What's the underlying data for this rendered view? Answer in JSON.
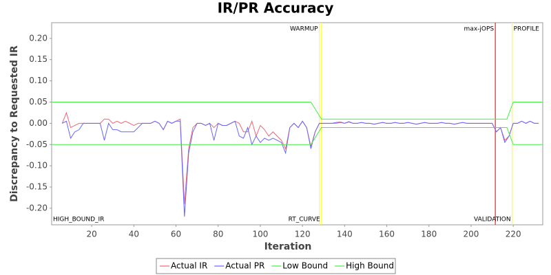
{
  "chart_data": {
    "type": "line",
    "title": "IR/PR Accuracy",
    "xlabel": "Iteration",
    "ylabel": "Discrepancy to Requested IR",
    "xlim": [
      1,
      234
    ],
    "ylim": [
      -0.239,
      0.237
    ],
    "xticks": [
      20,
      40,
      60,
      80,
      100,
      120,
      140,
      160,
      180,
      200,
      220
    ],
    "yticks": [
      {
        "value": 0.2,
        "label": "0.20"
      },
      0.15,
      {
        "value": 0.1,
        "label": "0.10"
      },
      0.05,
      {
        "value": 0,
        "label": "0.00"
      },
      -0.05,
      {
        "value": -0.1,
        "label": "-0.10"
      },
      -0.15,
      {
        "value": -0.2,
        "label": "-0.20"
      }
    ],
    "grid": false,
    "legend": "bottom",
    "series": [
      {
        "name": "Actual IR",
        "color": "#ee6677",
        "x": [
          6,
          8,
          10,
          12,
          14,
          16,
          18,
          20,
          22,
          24,
          26,
          28,
          30,
          32,
          34,
          36,
          38,
          40,
          42,
          44,
          46,
          48,
          50,
          52,
          54,
          56,
          58,
          60,
          62,
          64,
          66,
          68,
          70,
          72,
          74,
          76,
          78,
          80,
          82,
          84,
          86,
          88,
          90,
          92,
          94,
          96,
          98,
          100,
          102,
          104,
          106,
          108,
          110,
          112,
          114,
          116,
          118,
          120,
          122,
          124,
          126,
          128,
          130,
          132,
          134,
          136,
          138,
          140,
          142,
          144,
          146,
          148,
          150,
          152,
          154,
          156,
          158,
          160,
          162,
          164,
          166,
          168,
          170,
          172,
          174,
          176,
          178,
          180,
          182,
          184,
          186,
          188,
          190,
          192,
          194,
          196,
          198,
          200,
          202,
          204,
          206,
          208,
          210,
          212,
          214,
          216,
          218,
          220,
          222,
          224,
          226,
          228,
          230,
          232
        ],
        "values": [
          0,
          0.025,
          -0.01,
          -0.005,
          0,
          0,
          0,
          0,
          0,
          0,
          0.01,
          0.01,
          0,
          0.005,
          0,
          0.005,
          0,
          -0.005,
          0,
          0,
          0,
          0,
          0.005,
          0,
          -0.015,
          0.005,
          0,
          0.005,
          0.01,
          -0.19,
          -0.06,
          -0.01,
          0,
          0,
          -0.005,
          0,
          -0.01,
          0,
          -0.005,
          -0.005,
          0,
          0.005,
          0,
          -0.02,
          -0.02,
          0.005,
          -0.03,
          -0.005,
          -0.015,
          -0.03,
          -0.02,
          -0.03,
          -0.04,
          -0.06,
          -0.01,
          0,
          -0.01,
          0.005,
          -0.01,
          -0.055,
          -0.02,
          0,
          0,
          0,
          0,
          0,
          0.002,
          0,
          0.003,
          0,
          0,
          0.002,
          0,
          0,
          -0.002,
          0,
          0.002,
          0,
          0,
          0.002,
          0,
          0,
          0.002,
          0,
          -0.002,
          0,
          0.002,
          0,
          0,
          0,
          0.002,
          0,
          0,
          -0.002,
          0,
          0.002,
          0,
          0,
          0,
          0,
          0,
          0,
          0,
          -0.02,
          -0.01,
          -0.04,
          -0.03,
          0,
          0,
          0.005,
          0,
          0.005,
          0,
          0
        ]
      },
      {
        "name": "Actual PR",
        "color": "#6666ff",
        "x": [
          6,
          8,
          10,
          12,
          14,
          16,
          18,
          20,
          22,
          24,
          26,
          28,
          30,
          32,
          34,
          36,
          38,
          40,
          42,
          44,
          46,
          48,
          50,
          52,
          54,
          56,
          58,
          60,
          62,
          64,
          66,
          68,
          70,
          72,
          74,
          76,
          78,
          80,
          82,
          84,
          86,
          88,
          90,
          92,
          94,
          96,
          98,
          100,
          102,
          104,
          106,
          108,
          110,
          112,
          114,
          116,
          118,
          120,
          122,
          124,
          126,
          128,
          130,
          132,
          134,
          136,
          138,
          140,
          142,
          144,
          146,
          148,
          150,
          152,
          154,
          156,
          158,
          160,
          162,
          164,
          166,
          168,
          170,
          172,
          174,
          176,
          178,
          180,
          182,
          184,
          186,
          188,
          190,
          192,
          194,
          196,
          198,
          200,
          202,
          204,
          206,
          208,
          210,
          212,
          214,
          216,
          218,
          220,
          222,
          224,
          226,
          228,
          230,
          232
        ],
        "values": [
          0,
          0.005,
          -0.035,
          -0.02,
          -0.015,
          0,
          0,
          0,
          0,
          0,
          -0.04,
          0,
          -0.015,
          -0.015,
          -0.02,
          -0.02,
          -0.02,
          -0.02,
          -0.01,
          0,
          0,
          0,
          0.005,
          0,
          -0.015,
          0.005,
          0,
          0.005,
          0.005,
          -0.22,
          -0.07,
          -0.02,
          0,
          0,
          -0.005,
          0,
          -0.04,
          0,
          -0.005,
          -0.005,
          0,
          0.005,
          -0.03,
          -0.035,
          -0.01,
          -0.05,
          -0.03,
          -0.045,
          -0.035,
          -0.04,
          -0.035,
          -0.04,
          -0.045,
          -0.07,
          -0.01,
          0,
          -0.01,
          0.005,
          -0.01,
          -0.06,
          -0.02,
          0,
          0,
          0,
          0,
          0.002,
          0.003,
          0,
          0.004,
          0,
          0,
          0.002,
          0,
          0,
          -0.002,
          0,
          0.002,
          0,
          0,
          0.002,
          0,
          0,
          0.002,
          0,
          -0.002,
          0,
          0.002,
          0,
          0,
          0,
          0.002,
          0,
          0,
          -0.002,
          0,
          0.002,
          0,
          0,
          0,
          0,
          0,
          0,
          0,
          -0.02,
          -0.01,
          -0.045,
          -0.03,
          0,
          0,
          0.005,
          0,
          0.005,
          0,
          0
        ]
      },
      {
        "name": "Low Bound",
        "color": "#44ee44",
        "x": [
          1,
          124,
          129,
          217,
          220,
          234
        ],
        "values": [
          -0.05,
          -0.05,
          -0.01,
          -0.01,
          -0.05,
          -0.05
        ]
      },
      {
        "name": "High Bound",
        "color": "#44ee44",
        "x": [
          1,
          124,
          129,
          217,
          220,
          234
        ],
        "values": [
          0.05,
          0.05,
          0.01,
          0.01,
          0.05,
          0.05
        ]
      }
    ],
    "markers": [
      {
        "label": "HIGH_BOUND_IR",
        "x": 1,
        "label_at": "bottom-right"
      },
      {
        "label": "WARMUP",
        "x": 128,
        "color": "#ffff44",
        "label_at": "top-left"
      },
      {
        "label": "RT_CURVE",
        "x": 129,
        "color": "#ffff44",
        "label_at": "bottom-left"
      },
      {
        "label": "max-jOPS",
        "x": 211.5,
        "color": "#ee2222",
        "label_at": "top-left"
      },
      {
        "label": "VALIDATION",
        "x": 219.5,
        "color": "#ffff44",
        "label_at": "bottom-left"
      },
      {
        "label": "PROFILE",
        "x": 219.5,
        "color": "#ffff44",
        "label_at": "top-right"
      }
    ]
  }
}
